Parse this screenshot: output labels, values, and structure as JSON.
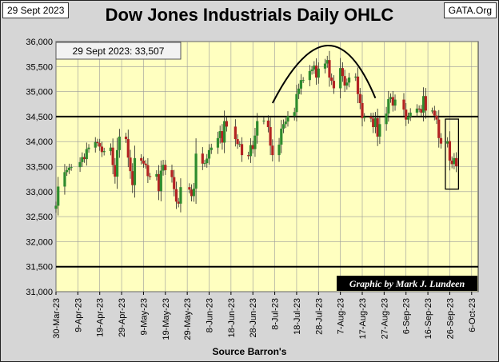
{
  "header": {
    "date_label": "29 Sept 2023",
    "title": "Dow Jones Industrials Daily OHLC",
    "brand": "GATA.Org"
  },
  "footer": {
    "source": "Source Barron's"
  },
  "colors": {
    "plot_bg": "#ffffc0",
    "up": "#2e8b2e",
    "down": "#b22222",
    "line": "#000000",
    "badge_bg": "#000000",
    "badge_text": "#ffffff"
  },
  "chart_data": {
    "type": "ohlc",
    "title": "Dow Jones Industrials Daily OHLC",
    "xlabel": "Source Barron's",
    "ylabel": "",
    "ylim": [
      31000,
      36000
    ],
    "yticks": [
      31000,
      31500,
      32000,
      32500,
      33000,
      33500,
      34000,
      34500,
      35000,
      35500,
      36000
    ],
    "ytick_labels": [
      "31,000",
      "31,500",
      "32,000",
      "32,500",
      "33,000",
      "33,500",
      "34,000",
      "34,500",
      "35,000",
      "35,500",
      "36,000"
    ],
    "xlim": [
      "2023-03-30",
      "2023-10-09"
    ],
    "xticks": [
      "30-Mar-23",
      "9-Apr-23",
      "19-Apr-23",
      "29-Apr-23",
      "9-May-23",
      "19-May-23",
      "29-May-23",
      "8-Jun-23",
      "18-Jun-23",
      "28-Jun-23",
      "8-Jul-23",
      "18-Jul-23",
      "28-Jul-23",
      "7-Aug-23",
      "17-Aug-23",
      "27-Aug-23",
      "6-Sep-23",
      "16-Sep-23",
      "26-Sep-23",
      "6-Oct-23"
    ],
    "grid": true,
    "latest_close_label": "29 Sept 2023: 33,507",
    "credit": "Graphic by Mark J. Lundeen",
    "horizontal_lines": [
      34500,
      31500
    ],
    "highlight_box": {
      "x0": "2023-09-24",
      "x1": "2023-09-30",
      "y0": 33050,
      "y1": 34450
    },
    "arc": {
      "start": [
        "2023-07-07",
        34770
      ],
      "end": [
        "2023-08-23",
        34870
      ],
      "peak": [
        "2023-08-01",
        35920
      ]
    },
    "series": [
      {
        "d": "2023-03-30",
        "c": 32718
      },
      {
        "d": "2023-03-31",
        "c": 33101
      },
      {
        "d": "2023-04-03",
        "c": 33390
      },
      {
        "d": "2023-04-04",
        "c": 33430
      },
      {
        "d": "2023-04-05",
        "c": 33480
      },
      {
        "d": "2023-04-06",
        "c": 33490
      },
      {
        "d": "2023-04-10",
        "c": 33590
      },
      {
        "d": "2023-04-11",
        "c": 33690
      },
      {
        "d": "2023-04-12",
        "c": 33650
      },
      {
        "d": "2023-04-13",
        "c": 33850
      },
      {
        "d": "2023-04-14",
        "c": 33880
      },
      {
        "d": "2023-04-17",
        "c": 33990
      },
      {
        "d": "2023-04-18",
        "c": 33970
      },
      {
        "d": "2023-04-19",
        "c": 33900
      },
      {
        "d": "2023-04-20",
        "c": 33790
      },
      {
        "d": "2023-04-21",
        "c": 33810
      },
      {
        "d": "2023-04-24",
        "c": 33880
      },
      {
        "d": "2023-04-25",
        "c": 33530
      },
      {
        "d": "2023-04-26",
        "c": 33300
      },
      {
        "d": "2023-04-27",
        "c": 33830
      },
      {
        "d": "2023-04-28",
        "c": 34100
      },
      {
        "d": "2023-05-01",
        "c": 34050
      },
      {
        "d": "2023-05-02",
        "c": 33680
      },
      {
        "d": "2023-05-03",
        "c": 33410
      },
      {
        "d": "2023-05-04",
        "c": 33130
      },
      {
        "d": "2023-05-05",
        "c": 33670
      },
      {
        "d": "2023-05-08",
        "c": 33620
      },
      {
        "d": "2023-05-09",
        "c": 33560
      },
      {
        "d": "2023-05-10",
        "c": 33530
      },
      {
        "d": "2023-05-11",
        "c": 33310
      },
      {
        "d": "2023-05-12",
        "c": 33300
      },
      {
        "d": "2023-05-15",
        "c": 33350
      },
      {
        "d": "2023-05-16",
        "c": 33010
      },
      {
        "d": "2023-05-17",
        "c": 33420
      },
      {
        "d": "2023-05-18",
        "c": 33535
      },
      {
        "d": "2023-05-19",
        "c": 33430
      },
      {
        "d": "2023-05-22",
        "c": 33290
      },
      {
        "d": "2023-05-23",
        "c": 33050
      },
      {
        "d": "2023-05-24",
        "c": 32800
      },
      {
        "d": "2023-05-25",
        "c": 32760
      },
      {
        "d": "2023-05-26",
        "c": 33090
      },
      {
        "d": "2023-05-30",
        "c": 33040
      },
      {
        "d": "2023-05-31",
        "c": 32910
      },
      {
        "d": "2023-06-01",
        "c": 33060
      },
      {
        "d": "2023-06-02",
        "c": 33760
      },
      {
        "d": "2023-06-05",
        "c": 33560
      },
      {
        "d": "2023-06-06",
        "c": 33570
      },
      {
        "d": "2023-06-07",
        "c": 33660
      },
      {
        "d": "2023-06-08",
        "c": 33830
      },
      {
        "d": "2023-06-09",
        "c": 33880
      },
      {
        "d": "2023-06-12",
        "c": 34070
      },
      {
        "d": "2023-06-13",
        "c": 34210
      },
      {
        "d": "2023-06-14",
        "c": 33980
      },
      {
        "d": "2023-06-15",
        "c": 34410
      },
      {
        "d": "2023-06-16",
        "c": 34300
      },
      {
        "d": "2023-06-20",
        "c": 34050
      },
      {
        "d": "2023-06-21",
        "c": 33950
      },
      {
        "d": "2023-06-22",
        "c": 33950
      },
      {
        "d": "2023-06-23",
        "c": 33730
      },
      {
        "d": "2023-06-26",
        "c": 33710
      },
      {
        "d": "2023-06-27",
        "c": 33930
      },
      {
        "d": "2023-06-28",
        "c": 33850
      },
      {
        "d": "2023-06-29",
        "c": 34120
      },
      {
        "d": "2023-06-30",
        "c": 34410
      },
      {
        "d": "2023-07-03",
        "c": 34420
      },
      {
        "d": "2023-07-05",
        "c": 34290
      },
      {
        "d": "2023-07-06",
        "c": 33920
      },
      {
        "d": "2023-07-07",
        "c": 33730
      },
      {
        "d": "2023-07-10",
        "c": 33940
      },
      {
        "d": "2023-07-11",
        "c": 34260
      },
      {
        "d": "2023-07-12",
        "c": 34350
      },
      {
        "d": "2023-07-13",
        "c": 34400
      },
      {
        "d": "2023-07-14",
        "c": 34510
      },
      {
        "d": "2023-07-17",
        "c": 34590
      },
      {
        "d": "2023-07-18",
        "c": 34950
      },
      {
        "d": "2023-07-19",
        "c": 35060
      },
      {
        "d": "2023-07-20",
        "c": 35230
      },
      {
        "d": "2023-07-21",
        "c": 35230
      },
      {
        "d": "2023-07-24",
        "c": 35410
      },
      {
        "d": "2023-07-25",
        "c": 35440
      },
      {
        "d": "2023-07-26",
        "c": 35520
      },
      {
        "d": "2023-07-27",
        "c": 35280
      },
      {
        "d": "2023-07-28",
        "c": 35460
      },
      {
        "d": "2023-07-31",
        "c": 35560
      },
      {
        "d": "2023-08-01",
        "c": 35630
      },
      {
        "d": "2023-08-02",
        "c": 35280
      },
      {
        "d": "2023-08-03",
        "c": 35215
      },
      {
        "d": "2023-08-04",
        "c": 35066
      },
      {
        "d": "2023-08-07",
        "c": 35470
      },
      {
        "d": "2023-08-08",
        "c": 35310
      },
      {
        "d": "2023-08-09",
        "c": 35120
      },
      {
        "d": "2023-08-10",
        "c": 35180
      },
      {
        "d": "2023-08-11",
        "c": 35280
      },
      {
        "d": "2023-08-14",
        "c": 35300
      },
      {
        "d": "2023-08-15",
        "c": 34950
      },
      {
        "d": "2023-08-16",
        "c": 34770
      },
      {
        "d": "2023-08-17",
        "c": 34470
      },
      {
        "d": "2023-08-18",
        "c": 34500
      },
      {
        "d": "2023-08-21",
        "c": 34460
      },
      {
        "d": "2023-08-22",
        "c": 34290
      },
      {
        "d": "2023-08-23",
        "c": 34470
      },
      {
        "d": "2023-08-24",
        "c": 34100
      },
      {
        "d": "2023-08-25",
        "c": 34350
      },
      {
        "d": "2023-08-28",
        "c": 34560
      },
      {
        "d": "2023-08-29",
        "c": 34850
      },
      {
        "d": "2023-08-30",
        "c": 34890
      },
      {
        "d": "2023-08-31",
        "c": 34720
      },
      {
        "d": "2023-09-01",
        "c": 34840
      },
      {
        "d": "2023-09-05",
        "c": 34640
      },
      {
        "d": "2023-09-06",
        "c": 34440
      },
      {
        "d": "2023-09-07",
        "c": 34500
      },
      {
        "d": "2023-09-08",
        "c": 34580
      },
      {
        "d": "2023-09-11",
        "c": 34660
      },
      {
        "d": "2023-09-12",
        "c": 34650
      },
      {
        "d": "2023-09-13",
        "c": 34580
      },
      {
        "d": "2023-09-14",
        "c": 34910
      },
      {
        "d": "2023-09-15",
        "c": 34620
      },
      {
        "d": "2023-09-18",
        "c": 34620
      },
      {
        "d": "2023-09-19",
        "c": 34520
      },
      {
        "d": "2023-09-20",
        "c": 34440
      },
      {
        "d": "2023-09-21",
        "c": 34070
      },
      {
        "d": "2023-09-22",
        "c": 33960
      },
      {
        "d": "2023-09-25",
        "c": 34010
      },
      {
        "d": "2023-09-26",
        "c": 33620
      },
      {
        "d": "2023-09-27",
        "c": 33550
      },
      {
        "d": "2023-09-28",
        "c": 33670
      },
      {
        "d": "2023-09-29",
        "c": 33507
      }
    ]
  }
}
